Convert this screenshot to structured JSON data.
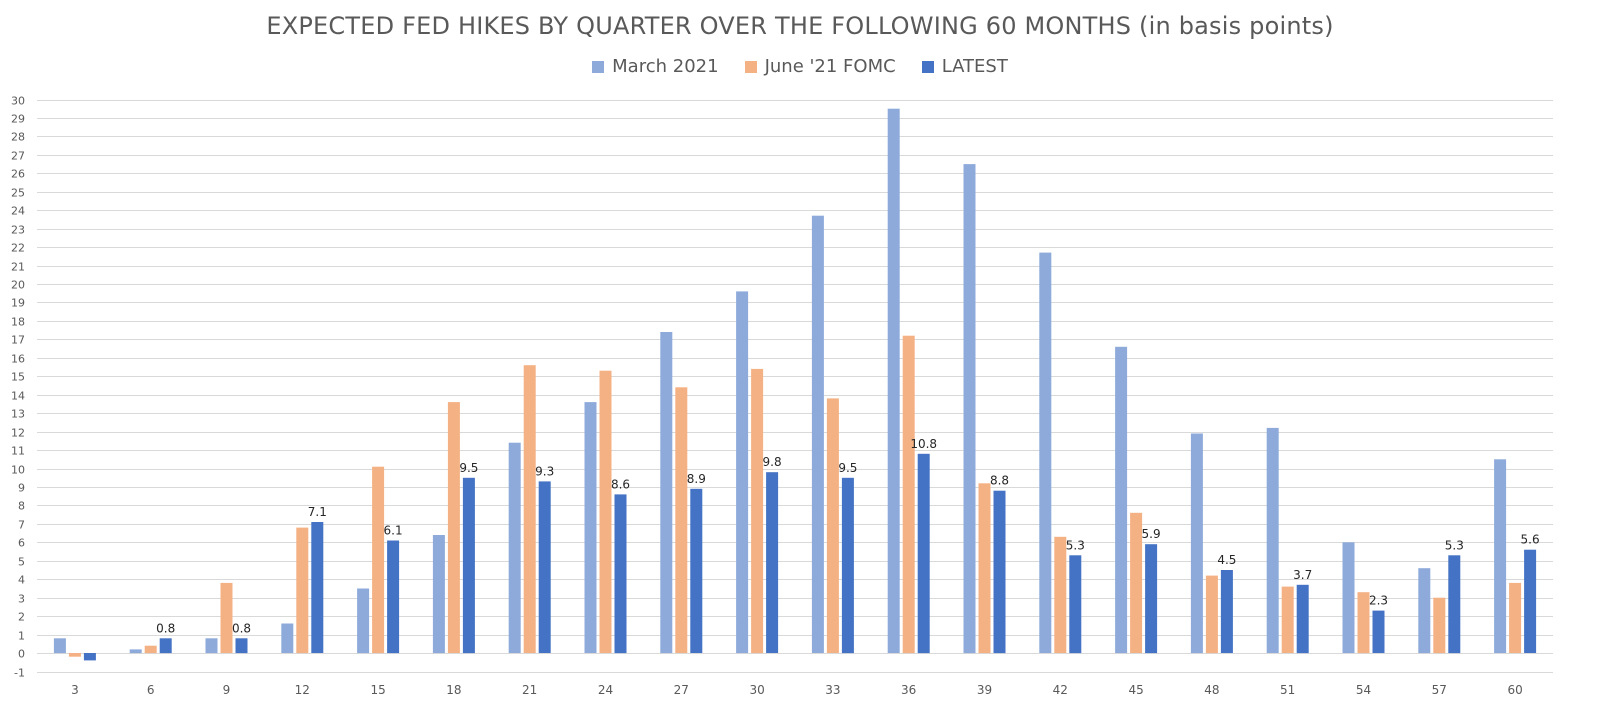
{
  "chart_data": {
    "type": "bar",
    "title": "EXPECTED FED HIKES BY QUARTER OVER THE FOLLOWING 60 MONTHS (in basis points)",
    "xlabel": "",
    "ylabel": "",
    "ylim": [
      -1,
      30
    ],
    "yticks": [
      -1,
      0,
      1,
      2,
      3,
      4,
      5,
      6,
      7,
      8,
      9,
      10,
      11,
      12,
      13,
      14,
      15,
      16,
      17,
      18,
      19,
      20,
      21,
      22,
      23,
      24,
      25,
      26,
      27,
      28,
      29,
      30
    ],
    "grid": true,
    "legend_position": "top-center",
    "categories": [
      "3",
      "6",
      "9",
      "12",
      "15",
      "18",
      "21",
      "24",
      "27",
      "30",
      "33",
      "36",
      "39",
      "42",
      "45",
      "48",
      "51",
      "54",
      "57",
      "60"
    ],
    "series": [
      {
        "name": "March 2021",
        "color": "#8eaadb",
        "values": [
          0.8,
          0.2,
          0.8,
          1.6,
          3.5,
          6.4,
          11.4,
          13.6,
          17.4,
          19.6,
          23.7,
          29.5,
          26.5,
          21.7,
          16.6,
          11.9,
          12.2,
          6.0,
          4.6,
          10.5
        ]
      },
      {
        "name": "June '21 FOMC",
        "color": "#f4b183",
        "values": [
          -0.2,
          0.4,
          3.8,
          6.8,
          10.1,
          13.6,
          15.6,
          15.3,
          14.4,
          15.4,
          13.8,
          17.2,
          9.2,
          6.3,
          7.6,
          4.2,
          3.6,
          3.3,
          3.0,
          3.8
        ]
      },
      {
        "name": "LATEST",
        "color": "#4472c4",
        "values": [
          -0.4,
          0.8,
          0.8,
          7.1,
          6.1,
          9.5,
          9.3,
          8.6,
          8.9,
          9.8,
          9.5,
          10.8,
          8.8,
          5.3,
          5.9,
          4.5,
          3.7,
          2.3,
          5.3,
          5.6
        ],
        "data_labels": [
          "",
          "0.8",
          "0.8",
          "7.1",
          "6.1",
          "9.5",
          "9.3",
          "8.6",
          "8.9",
          "9.8",
          "9.5",
          "10.8",
          "8.8",
          "5.3",
          "5.9",
          "4.5",
          "3.7",
          "2.3",
          "5.3",
          "5.6"
        ]
      }
    ]
  }
}
